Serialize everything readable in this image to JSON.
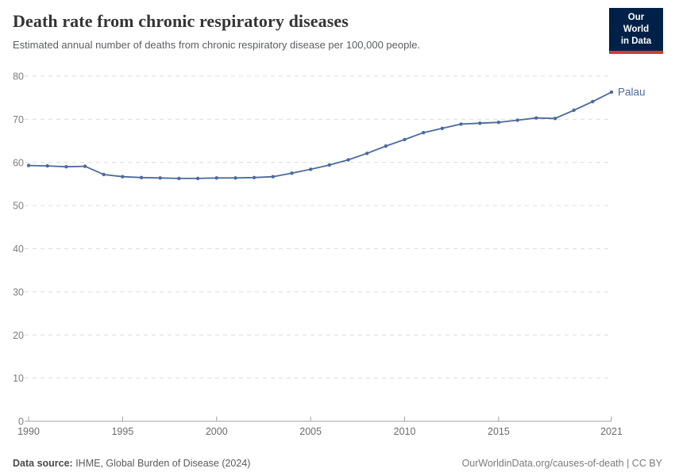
{
  "header": {
    "title": "Death rate from chronic respiratory diseases",
    "subtitle": "Estimated annual number of deaths from chronic respiratory disease per 100,000 people.",
    "logo": {
      "line1": "Our World",
      "line2": "in Data"
    }
  },
  "footer": {
    "source_label": "Data source:",
    "source_text": " IHME, Global Burden of Disease (2024)",
    "link_text": "OurWorldinData.org/causes-of-death | CC BY"
  },
  "colors": {
    "line": "#4c6a9c",
    "logo_bg": "#002147",
    "logo_red": "#d43c31",
    "grid": "#dcdcdc",
    "axis": "#a1a1a1",
    "y_tick_label": "#7d7d7d",
    "x_tick_label": "#6b6b6b"
  },
  "chart_data": {
    "type": "line",
    "title": "Death rate from chronic respiratory diseases",
    "xlabel": "",
    "ylabel": "",
    "ylim": [
      0,
      80
    ],
    "yticks": [
      0,
      10,
      20,
      30,
      40,
      50,
      60,
      70,
      80
    ],
    "xticks": [
      1990,
      1995,
      2000,
      2005,
      2010,
      2015,
      2021
    ],
    "grid": "dashed-horizontal",
    "legend_position": "end-of-line-label",
    "series": [
      {
        "name": "Palau",
        "x": [
          1990,
          1991,
          1992,
          1993,
          1994,
          1995,
          1996,
          1997,
          1998,
          1999,
          2000,
          2001,
          2002,
          2003,
          2004,
          2005,
          2006,
          2007,
          2008,
          2009,
          2010,
          2011,
          2012,
          2013,
          2014,
          2015,
          2016,
          2017,
          2018,
          2019,
          2020,
          2021
        ],
        "values": [
          59.3,
          59.2,
          59.0,
          59.1,
          57.2,
          56.7,
          56.5,
          56.4,
          56.3,
          56.3,
          56.4,
          56.4,
          56.5,
          56.7,
          57.5,
          58.4,
          59.4,
          60.6,
          62.1,
          63.8,
          65.3,
          66.9,
          67.9,
          68.9,
          69.1,
          69.3,
          69.8,
          70.3,
          70.2,
          72.1,
          74.1,
          76.3
        ]
      }
    ]
  }
}
